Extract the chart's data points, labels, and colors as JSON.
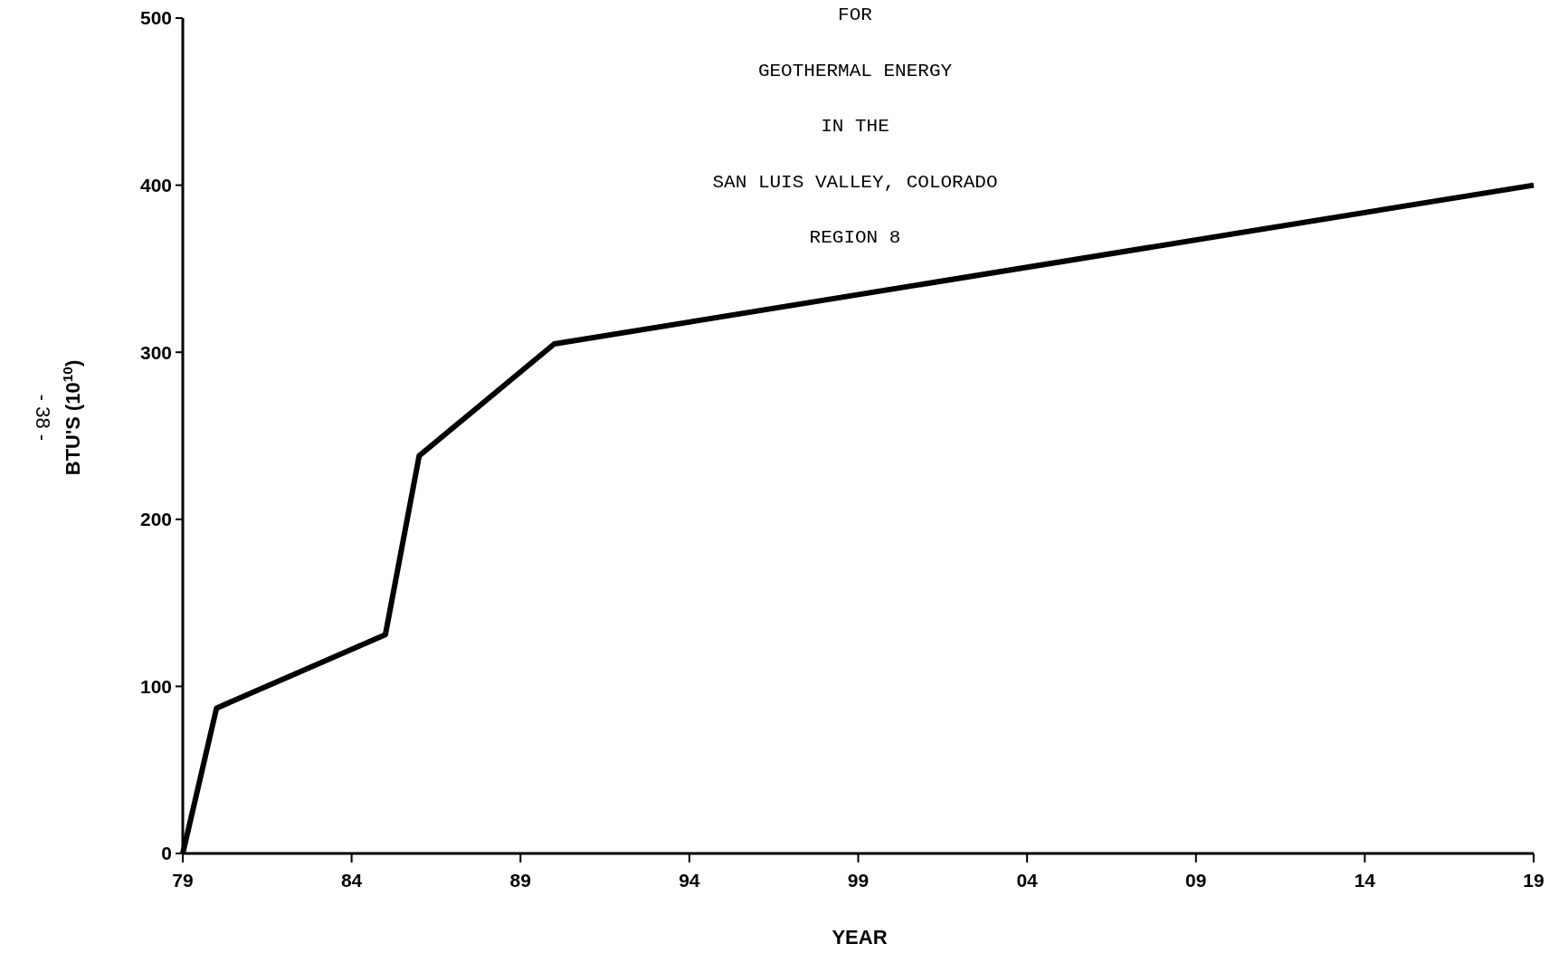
{
  "chart_data": {
    "type": "line",
    "title": "FOR\nGEOTHERMAL ENERGY\nIN THE\nSAN LUIS VALLEY, COLORADO\nREGION 8",
    "xlabel": "YEAR",
    "ylabel": "BTU'S (10$^{10}$)",
    "annotations": [
      "- 38 -"
    ],
    "x": [
      1979,
      1980,
      1985,
      1986,
      1990,
      2019
    ],
    "series": [
      {
        "color": "#000000",
        "values": [
          0,
          87,
          131,
          238,
          305,
          400
        ]
      }
    ],
    "xlim": [
      1979,
      2019
    ],
    "xticks": [
      {
        "value": 1979,
        "label": "79"
      },
      {
        "value": 1984,
        "label": "84"
      },
      {
        "value": 1989,
        "label": "89"
      },
      {
        "value": 1994,
        "label": "94"
      },
      {
        "value": 1999,
        "label": "99"
      },
      {
        "value": 2004,
        "label": "04"
      },
      {
        "value": 2009,
        "label": "09"
      },
      {
        "value": 2014,
        "label": "14"
      },
      {
        "value": 2019,
        "label": "19"
      }
    ],
    "ylim": [
      0,
      500
    ],
    "yticks": [
      0,
      100,
      200,
      300,
      400,
      500
    ],
    "grid": false,
    "marker": "none",
    "line_style": "solid"
  }
}
